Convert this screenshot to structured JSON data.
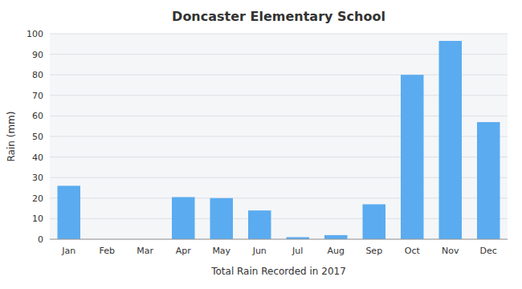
{
  "chart_data": {
    "type": "bar",
    "title": "Doncaster Elementary School",
    "xlabel": "Total Rain Recorded in 2017",
    "ylabel": "Rain (mm)",
    "categories": [
      "Jan",
      "Feb",
      "Mar",
      "Apr",
      "May",
      "Jun",
      "Jul",
      "Aug",
      "Sep",
      "Oct",
      "Nov",
      "Dec"
    ],
    "values": [
      26,
      0,
      0,
      20.5,
      20,
      14,
      1,
      2,
      17,
      80,
      96.5,
      57
    ],
    "color": "#5aabf0",
    "ylim": [
      0,
      100
    ],
    "yticks": [
      0,
      10,
      20,
      30,
      40,
      50,
      60,
      70,
      80,
      90,
      100
    ],
    "grid": true
  }
}
